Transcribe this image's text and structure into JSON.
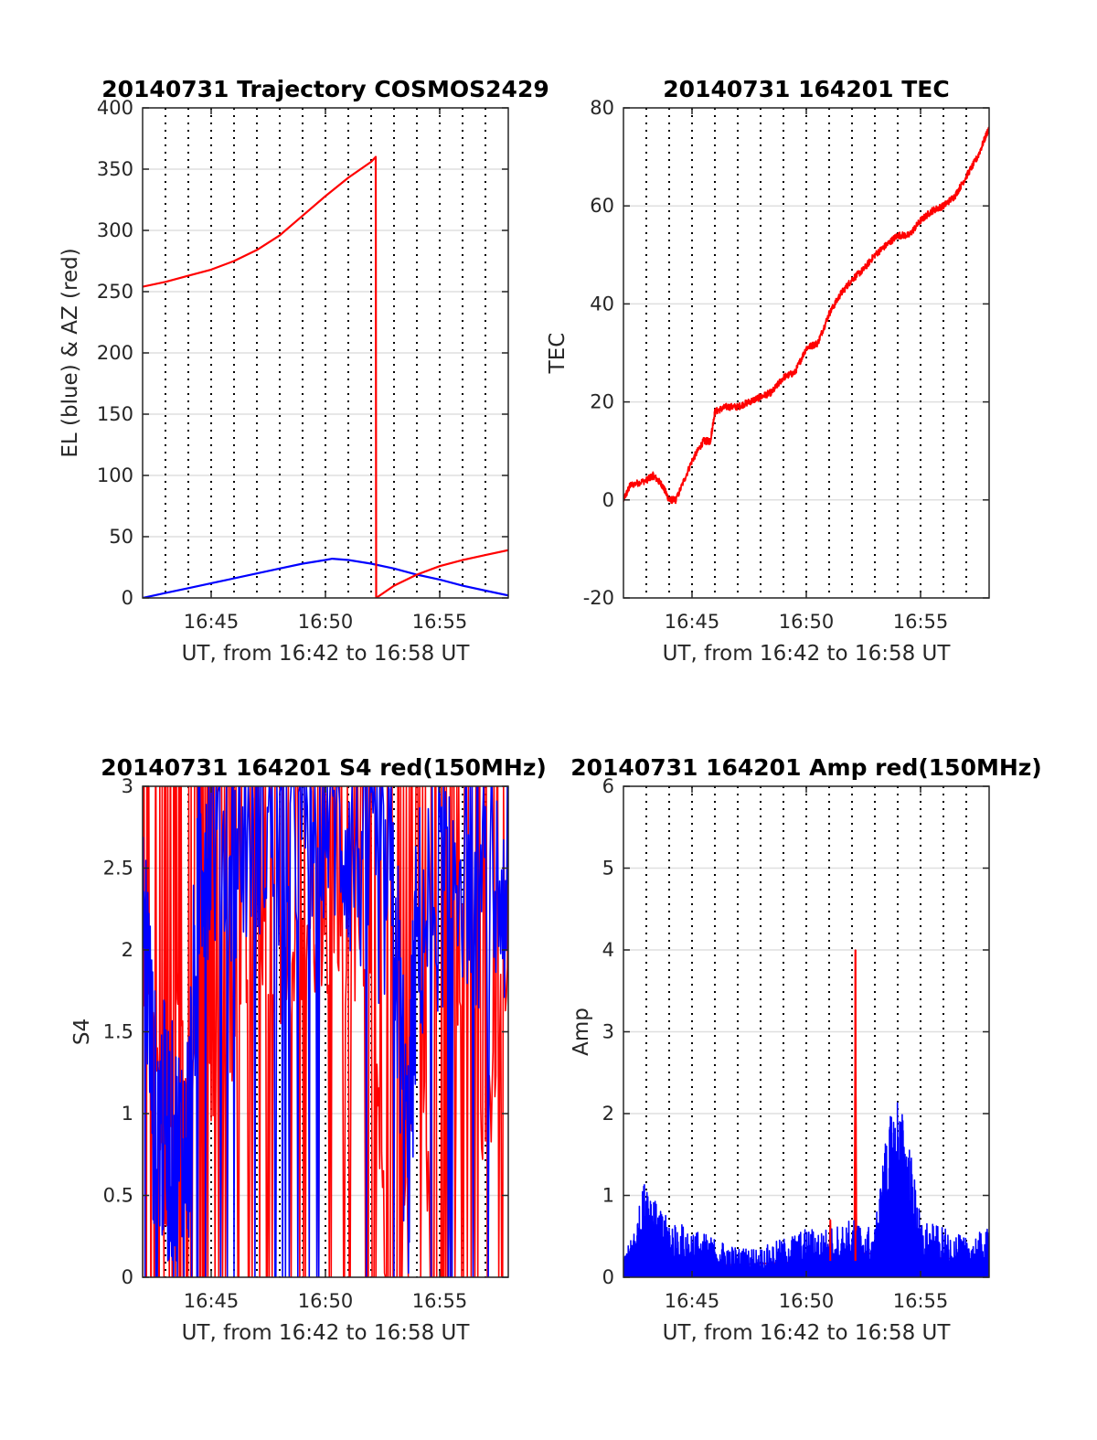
{
  "chart_data": [
    {
      "type": "line",
      "title": "20140731 Trajectory COSMOS2429",
      "xlabel": "UT, from 16:42 to 16:58 UT",
      "ylabel": "EL (blue) & AZ (red)",
      "xlim": [
        42,
        58
      ],
      "ylim": [
        0,
        400
      ],
      "xticks": [
        45,
        50,
        55
      ],
      "xtick_labels": [
        "16:45",
        "16:50",
        "16:55"
      ],
      "yticks": [
        0,
        50,
        100,
        150,
        200,
        250,
        300,
        350,
        400
      ],
      "ytick_labels": [
        "0",
        "50",
        "100",
        "150",
        "200",
        "250",
        "300",
        "350",
        "400"
      ],
      "grid": "y solid, x dotted each minute",
      "series": [
        {
          "color": "#0000ff",
          "x": [
            42,
            43,
            44,
            45,
            46,
            47,
            48,
            49,
            50,
            50.3,
            51,
            52,
            53,
            54,
            55,
            56,
            57,
            58
          ],
          "y": [
            0,
            4,
            8,
            12,
            16,
            20,
            24,
            28,
            31,
            32,
            31,
            28,
            24,
            19,
            15,
            10,
            6,
            2
          ]
        },
        {
          "color": "#ff0000",
          "x": [
            42,
            43,
            44,
            45,
            46,
            47,
            48,
            49,
            50,
            51,
            52,
            52.2,
            52.22,
            53,
            54,
            55,
            56,
            57,
            58
          ],
          "y": [
            254,
            258,
            263,
            268,
            275,
            284,
            296,
            312,
            328,
            343,
            356,
            360,
            0,
            10,
            19,
            26,
            31,
            35,
            39
          ]
        }
      ]
    },
    {
      "type": "line",
      "title": "20140731 164201 TEC",
      "xlabel": "UT, from 16:42 to 16:58 UT",
      "ylabel": "TEC",
      "xlim": [
        42,
        58
      ],
      "ylim": [
        -20,
        80
      ],
      "xticks": [
        45,
        50,
        55
      ],
      "xtick_labels": [
        "16:45",
        "16:50",
        "16:55"
      ],
      "yticks": [
        -20,
        0,
        20,
        40,
        60,
        80
      ],
      "ytick_labels": [
        "-20",
        "0",
        "20",
        "40",
        "60",
        "80"
      ],
      "grid": "y solid, x dotted each minute",
      "series": [
        {
          "color": "#ff0000",
          "x": [
            42,
            42.3,
            43,
            43.3,
            43.7,
            44,
            44.3,
            45,
            45.5,
            45.8,
            46,
            46.5,
            47,
            47.5,
            48,
            48.5,
            49,
            49.5,
            50,
            50.5,
            51,
            51.5,
            52,
            52.5,
            53,
            53.5,
            54,
            54.5,
            55,
            55.5,
            56,
            56.5,
            57,
            57.5,
            58
          ],
          "y": [
            0,
            3,
            4,
            5,
            3,
            0,
            0,
            8,
            12,
            12,
            18,
            19,
            19,
            20,
            21,
            22,
            25,
            26,
            31,
            32,
            38,
            42,
            45,
            47,
            50,
            52,
            54,
            54,
            57,
            59,
            60,
            62,
            66,
            70,
            76
          ]
        }
      ]
    },
    {
      "type": "line",
      "title": "20140731 164201 S4 red(150MHz)",
      "xlabel": "UT, from 16:42 to 16:58 UT",
      "ylabel": "S4",
      "xlim": [
        42,
        58
      ],
      "ylim": [
        0,
        3
      ],
      "xticks": [
        45,
        50,
        55
      ],
      "xtick_labels": [
        "16:45",
        "16:50",
        "16:55"
      ],
      "yticks": [
        0,
        0.5,
        1,
        1.5,
        2,
        2.5,
        3
      ],
      "ytick_labels": [
        "0",
        "0.5",
        "1",
        "1.5",
        "2",
        "2.5",
        "3"
      ],
      "grid": "y solid, x dotted each minute",
      "series": [
        {
          "color": "#ff0000",
          "x": [
            42,
            42.5,
            43,
            43.5,
            44,
            44.5,
            45,
            46,
            47,
            48,
            49,
            50,
            51,
            52,
            53,
            54,
            55,
            56,
            57,
            58
          ],
          "y": [
            3,
            2.5,
            1.5,
            2.8,
            1.9,
            3,
            2.2,
            2.5,
            3,
            2.8,
            3,
            3,
            2.9,
            3,
            0,
            3,
            0,
            3,
            1.8,
            3
          ]
        },
        {
          "color": "#0000ff",
          "x": [
            42,
            42.5,
            43,
            43.5,
            44,
            44.5,
            45,
            46,
            47,
            48,
            49,
            50,
            51,
            52,
            53,
            53.6,
            54,
            55,
            56,
            57,
            58
          ],
          "y": [
            2.5,
            1.0,
            0.9,
            0.7,
            0.8,
            2.6,
            2.8,
            2.6,
            2.9,
            2.7,
            2.8,
            3,
            2.7,
            2.5,
            2.3,
            0.6,
            2.1,
            2.4,
            2.6,
            2.3,
            2.4
          ]
        }
      ]
    },
    {
      "type": "line",
      "title": "20140731 164201 Amp red(150MHz)",
      "xlabel": "UT, from 16:42 to 16:58 UT",
      "ylabel": "Amp",
      "xlim": [
        42,
        58
      ],
      "ylim": [
        0,
        6
      ],
      "xticks": [
        45,
        50,
        55
      ],
      "xtick_labels": [
        "16:45",
        "16:50",
        "16:55"
      ],
      "yticks": [
        0,
        1,
        2,
        3,
        4,
        5,
        6
      ],
      "ytick_labels": [
        "0",
        "1",
        "2",
        "3",
        "4",
        "5",
        "6"
      ],
      "grid": "y solid, x dotted each minute",
      "series": [
        {
          "color": "#ff0000",
          "x": [
            42,
            51,
            51.05,
            51.1,
            52.1,
            52.15,
            52.2,
            58
          ],
          "y": [
            0.1,
            0.2,
            0.7,
            0.2,
            0.3,
            4.0,
            0.3,
            0.2
          ]
        },
        {
          "color": "#0000ff",
          "x": [
            42,
            42.5,
            43,
            43.5,
            44,
            45,
            46,
            47,
            48,
            49,
            50,
            51,
            52,
            53,
            53.5,
            54,
            54.5,
            55,
            56,
            57,
            58
          ],
          "y": [
            0.2,
            0.5,
            1.1,
            0.7,
            0.6,
            0.5,
            0.4,
            0.3,
            0.3,
            0.4,
            0.5,
            0.5,
            0.6,
            0.5,
            1.5,
            1.9,
            1.4,
            0.6,
            0.5,
            0.4,
            0.5
          ]
        }
      ]
    }
  ]
}
